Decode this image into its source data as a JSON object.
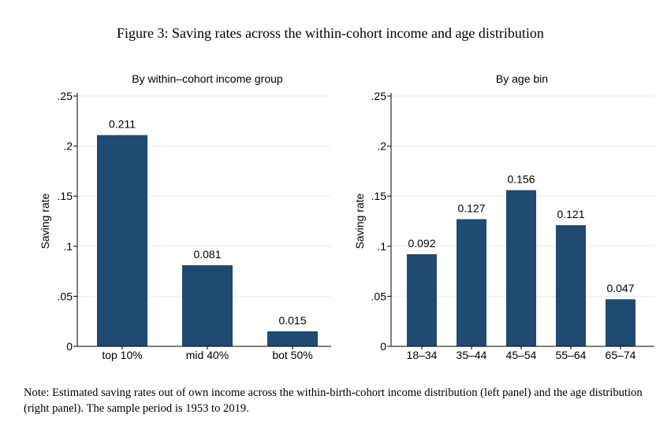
{
  "figure_title": "Figure 3: Saving rates across the within-cohort income and age distribution",
  "note": "Note: Estimated saving rates out of own income across the within-birth-cohort income distribution (left panel) and the age distribution (right panel). The sample period is 1953 to 2019.",
  "colors": {
    "bar": "#1f4a72",
    "grid": "#e8e8e8",
    "axis": "#000000"
  },
  "chart_data": [
    {
      "type": "bar",
      "title": "By within–cohort income group",
      "ylabel": "Saving rate",
      "xlabel": "",
      "categories": [
        "top 10%",
        "mid 40%",
        "bot 50%"
      ],
      "values": [
        0.211,
        0.081,
        0.015
      ],
      "value_labels": [
        "0.211",
        "0.081",
        "0.015"
      ],
      "ylim": [
        0,
        0.25
      ],
      "yticks": [
        0,
        0.05,
        0.1,
        0.15,
        0.2,
        0.25
      ],
      "ytick_labels": [
        "0",
        ".05",
        ".1",
        ".15",
        ".2",
        ".25"
      ],
      "grid": true
    },
    {
      "type": "bar",
      "title": "By age bin",
      "ylabel": "Saving rate",
      "xlabel": "",
      "categories": [
        "18–34",
        "35–44",
        "45–54",
        "55–64",
        "65–74"
      ],
      "values": [
        0.092,
        0.127,
        0.156,
        0.121,
        0.047
      ],
      "value_labels": [
        "0.092",
        "0.127",
        "0.156",
        "0.121",
        "0.047"
      ],
      "ylim": [
        0,
        0.25
      ],
      "yticks": [
        0,
        0.05,
        0.1,
        0.15,
        0.2,
        0.25
      ],
      "ytick_labels": [
        "0",
        ".05",
        ".1",
        ".15",
        ".2",
        ".25"
      ],
      "grid": true
    }
  ]
}
